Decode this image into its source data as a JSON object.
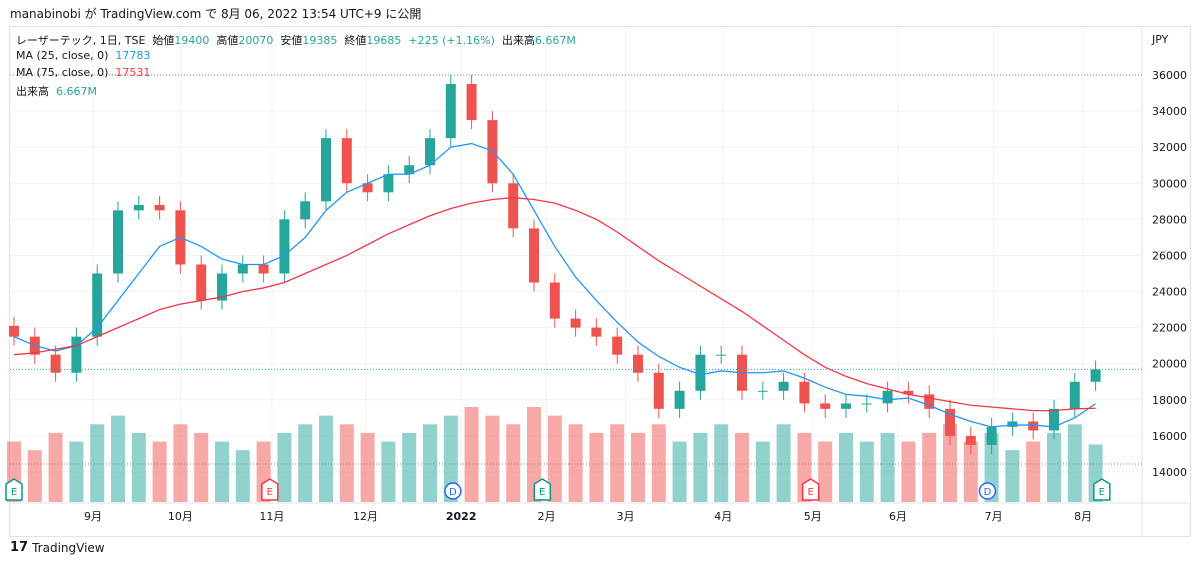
{
  "publish_line": "manabinobi が TradingView.com で 8月 06, 2022 13:54 UTC+9 に公開",
  "legend": {
    "symbol": "レーザーテック, 1日, TSE",
    "open_label": "始値",
    "open": "19400",
    "high_label": "高値",
    "high": "20070",
    "low_label": "安値",
    "low": "19385",
    "close_label": "終値",
    "close": "19685",
    "change": "+225 (+1.16%)",
    "vol_label": "出来高",
    "vol": "6.667M",
    "ma25_label": "MA (25, close, 0)",
    "ma25": "17783",
    "ma75_label": "MA (75, close, 0)",
    "ma75": "17531",
    "volume_label": "出来高",
    "volume_value": "6.667M"
  },
  "currency": "JPY",
  "brand": "TradingView",
  "colors": {
    "up": "#26a69a",
    "down": "#ef5350",
    "ma25": "#2196f3",
    "ma75": "#f23645"
  },
  "chart_data": {
    "type": "candlestick",
    "interval_note": "approximated weekly from daily chart",
    "ylim": [
      12600,
      37400
    ],
    "yticks": [
      14000,
      16000,
      18000,
      20000,
      22000,
      24000,
      26000,
      28000,
      30000,
      32000,
      34000,
      36000
    ],
    "xticks": [
      {
        "label": "9月",
        "i": 3.8
      },
      {
        "label": "10月",
        "i": 8
      },
      {
        "label": "11月",
        "i": 12.4
      },
      {
        "label": "12月",
        "i": 16.9
      },
      {
        "label": "2022",
        "i": 21.5
      },
      {
        "label": "2月",
        "i": 25.6
      },
      {
        "label": "3月",
        "i": 29.4
      },
      {
        "label": "4月",
        "i": 34.1
      },
      {
        "label": "5月",
        "i": 38.4
      },
      {
        "label": "6月",
        "i": 42.5
      },
      {
        "label": "7月",
        "i": 47.1
      },
      {
        "label": "8月",
        "i": 51.4
      }
    ],
    "close": [
      21500,
      20500,
      19500,
      21500,
      25000,
      28500,
      28800,
      28500,
      25500,
      23500,
      25000,
      25500,
      25000,
      28000,
      29000,
      32500,
      30000,
      29500,
      30500,
      31000,
      32500,
      35500,
      33500,
      30000,
      27500,
      24500,
      22500,
      22000,
      21500,
      20500,
      19500,
      17500,
      18500,
      20500,
      20500,
      18500,
      18500,
      19000,
      17800,
      17500,
      17800,
      17800,
      18500,
      18300,
      17500,
      16000,
      15500,
      16500,
      16800,
      16300,
      17500,
      19000,
      19685
    ],
    "volume_m": [
      7,
      6,
      8,
      7,
      9,
      10,
      8,
      7,
      9,
      8,
      7,
      6,
      7,
      8,
      9,
      10,
      9,
      8,
      7,
      8,
      9,
      10,
      11,
      10,
      9,
      11,
      10,
      9,
      8,
      9,
      8,
      9,
      7,
      8,
      9,
      8,
      7,
      9,
      8,
      7,
      8,
      7,
      8,
      7,
      8,
      9,
      7,
      8,
      6,
      7,
      8,
      9,
      6.667
    ],
    "ma25": [
      21500,
      21000,
      20700,
      21000,
      22000,
      23500,
      25000,
      26500,
      27000,
      26500,
      25800,
      25500,
      25500,
      26000,
      27000,
      28500,
      29500,
      30000,
      30500,
      30500,
      31000,
      32000,
      32200,
      31800,
      30500,
      28500,
      26500,
      24800,
      23500,
      22300,
      21200,
      20400,
      19800,
      19400,
      19600,
      19500,
      19500,
      19600,
      19200,
      18700,
      18300,
      18200,
      18000,
      18100,
      17700,
      17200,
      16800,
      16500,
      16600,
      16600,
      16500,
      17000,
      17783
    ],
    "ma75": [
      20500,
      20600,
      20800,
      21000,
      21500,
      22000,
      22500,
      23000,
      23300,
      23500,
      23700,
      24000,
      24200,
      24500,
      25000,
      25500,
      26000,
      26600,
      27200,
      27700,
      28200,
      28600,
      28900,
      29100,
      29200,
      29100,
      28900,
      28500,
      28000,
      27300,
      26500,
      25700,
      25000,
      24300,
      23600,
      22900,
      22100,
      21300,
      20500,
      19800,
      19300,
      18900,
      18600,
      18300,
      18100,
      17900,
      17700,
      17600,
      17500,
      17400,
      17400,
      17500,
      17531
    ],
    "last_price": 19685,
    "period_high": 36000,
    "events": [
      {
        "type": "E",
        "i": 0,
        "color": "#089981"
      },
      {
        "type": "E",
        "i": 12.3,
        "color": "#f23645"
      },
      {
        "type": "D",
        "i": 21.1,
        "color": "#2962ff"
      },
      {
        "type": "E",
        "i": 25.4,
        "color": "#089981"
      },
      {
        "type": "E",
        "i": 38.3,
        "color": "#f23645"
      },
      {
        "type": "D",
        "i": 46.8,
        "color": "#2962ff"
      },
      {
        "type": "E",
        "i": 52.3,
        "color": "#089981"
      }
    ]
  }
}
